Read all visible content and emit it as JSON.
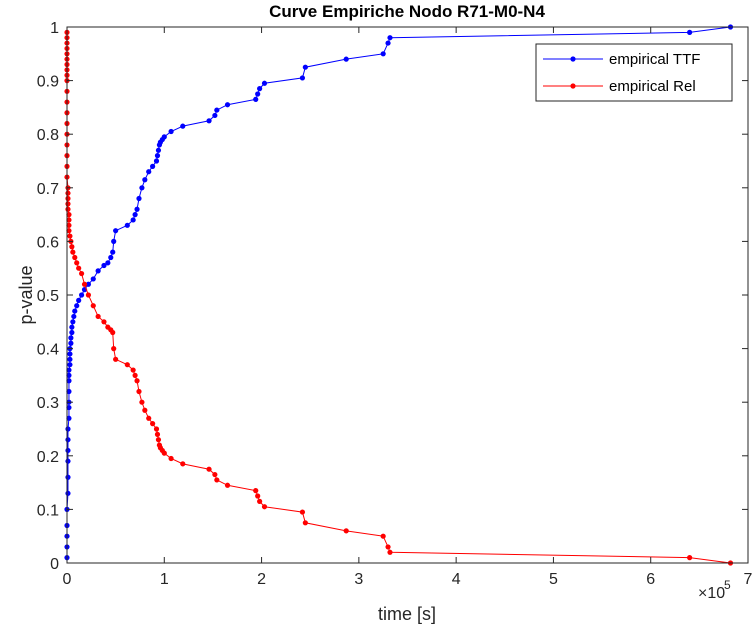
{
  "chart_data": {
    "type": "line",
    "title": "Curve Empiriche Nodo R71-M0-N4",
    "xlabel": "time [s]",
    "ylabel": "p-value",
    "xlim": [
      0,
      7
    ],
    "ylim": [
      0,
      1
    ],
    "x_multiplier_base": "×10",
    "x_multiplier_exp": "5",
    "x_ticks": [
      0,
      1,
      2,
      3,
      4,
      5,
      6,
      7
    ],
    "x_tick_labels": [
      "0",
      "1",
      "2",
      "3",
      "4",
      "5",
      "6",
      "7"
    ],
    "y_ticks": [
      0,
      0.1,
      0.2,
      0.3,
      0.4,
      0.5,
      0.6,
      0.7,
      0.8,
      0.9,
      1
    ],
    "y_tick_labels": [
      "0",
      "0.1",
      "0.2",
      "0.3",
      "0.4",
      "0.5",
      "0.6",
      "0.7",
      "0.8",
      "0.9",
      "1"
    ],
    "grid": false,
    "legend_position": "top-right",
    "series": [
      {
        "name": "empirical TTF",
        "color": "#0000ff",
        "x": [
          0,
          0,
          0,
          0,
          0,
          0.01,
          0.01,
          0.01,
          0.01,
          0.01,
          0.01,
          0.02,
          0.02,
          0.02,
          0.02,
          0.02,
          0.02,
          0.02,
          0.03,
          0.03,
          0.03,
          0.03,
          0.04,
          0.04,
          0.05,
          0.05,
          0.06,
          0.07,
          0.08,
          0.1,
          0.12,
          0.15,
          0.18,
          0.22,
          0.27,
          0.32,
          0.38,
          0.42,
          0.45,
          0.47,
          0.48,
          0.5,
          0.62,
          0.68,
          0.7,
          0.72,
          0.74,
          0.77,
          0.8,
          0.84,
          0.88,
          0.92,
          0.93,
          0.94,
          0.95,
          0.96,
          0.98,
          1.0,
          1.07,
          1.19,
          1.46,
          1.52,
          1.54,
          1.65,
          1.94,
          1.96,
          1.98,
          2.03,
          2.42,
          2.45,
          2.87,
          3.25,
          3.3,
          3.32,
          6.4,
          6.82
        ],
        "y": [
          0.01,
          0.03,
          0.05,
          0.07,
          0.1,
          0.13,
          0.16,
          0.19,
          0.21,
          0.23,
          0.25,
          0.27,
          0.29,
          0.3,
          0.32,
          0.34,
          0.35,
          0.36,
          0.37,
          0.38,
          0.39,
          0.4,
          0.41,
          0.42,
          0.43,
          0.44,
          0.45,
          0.46,
          0.47,
          0.48,
          0.49,
          0.5,
          0.51,
          0.52,
          0.53,
          0.545,
          0.555,
          0.56,
          0.57,
          0.58,
          0.6,
          0.62,
          0.63,
          0.64,
          0.65,
          0.66,
          0.68,
          0.7,
          0.715,
          0.73,
          0.74,
          0.75,
          0.76,
          0.77,
          0.78,
          0.785,
          0.79,
          0.795,
          0.805,
          0.815,
          0.825,
          0.835,
          0.845,
          0.855,
          0.865,
          0.875,
          0.885,
          0.895,
          0.905,
          0.925,
          0.94,
          0.95,
          0.97,
          0.98,
          0.99,
          1.0
        ]
      },
      {
        "name": "empirical Rel",
        "color": "#ff0000",
        "x": [
          0,
          0,
          0,
          0,
          0,
          0,
          0,
          0,
          0,
          0,
          0,
          0,
          0,
          0,
          0,
          0,
          0,
          0,
          0,
          0.01,
          0.01,
          0.01,
          0.01,
          0.01,
          0.02,
          0.02,
          0.02,
          0.02,
          0.03,
          0.04,
          0.05,
          0.06,
          0.08,
          0.1,
          0.12,
          0.15,
          0.18,
          0.22,
          0.27,
          0.32,
          0.38,
          0.42,
          0.45,
          0.47,
          0.48,
          0.5,
          0.62,
          0.68,
          0.7,
          0.72,
          0.74,
          0.77,
          0.8,
          0.84,
          0.88,
          0.92,
          0.93,
          0.94,
          0.95,
          0.96,
          0.98,
          1.0,
          1.07,
          1.19,
          1.46,
          1.52,
          1.54,
          1.65,
          1.94,
          1.96,
          1.98,
          2.03,
          2.42,
          2.45,
          2.87,
          3.25,
          3.3,
          3.32,
          6.4,
          6.82
        ],
        "y": [
          0.99,
          0.98,
          0.97,
          0.96,
          0.95,
          0.94,
          0.93,
          0.92,
          0.91,
          0.9,
          0.88,
          0.86,
          0.84,
          0.82,
          0.8,
          0.78,
          0.76,
          0.74,
          0.72,
          0.7,
          0.69,
          0.68,
          0.67,
          0.66,
          0.65,
          0.64,
          0.63,
          0.62,
          0.61,
          0.6,
          0.59,
          0.58,
          0.57,
          0.56,
          0.55,
          0.54,
          0.52,
          0.5,
          0.48,
          0.46,
          0.45,
          0.44,
          0.435,
          0.43,
          0.4,
          0.38,
          0.37,
          0.36,
          0.35,
          0.34,
          0.32,
          0.3,
          0.285,
          0.27,
          0.26,
          0.25,
          0.24,
          0.23,
          0.22,
          0.215,
          0.21,
          0.205,
          0.195,
          0.185,
          0.175,
          0.165,
          0.155,
          0.145,
          0.135,
          0.125,
          0.115,
          0.105,
          0.095,
          0.075,
          0.06,
          0.05,
          0.03,
          0.02,
          0.01,
          0.0
        ]
      }
    ]
  }
}
